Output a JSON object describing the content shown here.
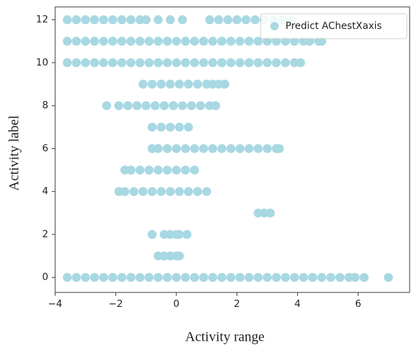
{
  "chart_data": {
    "type": "scatter",
    "xlabel": "Activity range",
    "ylabel": "Activity label",
    "xlim": [
      -4,
      7.7
    ],
    "ylim": [
      -0.7,
      12.6
    ],
    "xticks": [
      {
        "value": -4,
        "label": "−4"
      },
      {
        "value": -2,
        "label": "−2"
      },
      0,
      2,
      4,
      6
    ],
    "yticks": [
      0,
      2,
      4,
      6,
      8,
      10,
      12
    ],
    "legend": "upper right",
    "series": [
      {
        "name": "Predict AChestXaxis",
        "color": "#a8d8e2",
        "x": [
          -3.6,
          -3.3,
          -3.0,
          -2.7,
          -2.4,
          -2.1,
          -1.8,
          -1.5,
          -1.2,
          -1.0,
          -0.6,
          -0.2,
          0.2,
          1.1,
          1.4,
          1.7,
          2.0,
          2.3,
          2.6,
          2.9,
          3.2,
          3.5,
          3.8,
          -3.6,
          -3.3,
          -3.0,
          -2.7,
          -2.4,
          -2.1,
          -1.8,
          -1.5,
          -1.2,
          -0.9,
          -0.6,
          -0.3,
          0,
          0.3,
          0.6,
          0.9,
          1.2,
          1.5,
          1.8,
          2.1,
          2.4,
          2.7,
          3.0,
          3.3,
          3.6,
          3.9,
          4.2,
          4.4,
          4.7,
          4.8,
          -3.6,
          -3.3,
          -3.0,
          -2.7,
          -2.4,
          -2.1,
          -1.8,
          -1.5,
          -1.2,
          -0.9,
          -0.6,
          -0.3,
          0,
          0.3,
          0.6,
          0.9,
          1.2,
          1.5,
          1.8,
          2.1,
          2.4,
          2.7,
          3.0,
          3.3,
          3.6,
          3.9,
          4.1,
          -1.1,
          -0.8,
          -0.5,
          -0.2,
          0.1,
          0.4,
          0.7,
          1.0,
          1.2,
          1.4,
          1.6,
          -2.3,
          -1.9,
          -1.6,
          -1.3,
          -1.0,
          -0.7,
          -0.4,
          -0.1,
          0.2,
          0.5,
          0.8,
          1.1,
          1.3,
          -0.8,
          -0.5,
          -0.2,
          0.1,
          0.4,
          -0.8,
          -0.6,
          -0.3,
          0,
          0.3,
          0.6,
          0.9,
          1.2,
          1.5,
          1.8,
          2.1,
          2.4,
          2.7,
          3.0,
          3.3,
          3.4,
          -1.7,
          -1.5,
          -1.2,
          -0.9,
          -0.6,
          -0.3,
          0,
          0.3,
          0.6,
          -1.9,
          -1.7,
          -1.4,
          -1.1,
          -0.8,
          -0.5,
          -0.2,
          0.1,
          0.4,
          0.7,
          1.0,
          2.7,
          2.9,
          3.1,
          -0.8,
          -0.4,
          -0.2,
          0,
          0.1,
          0.35,
          -0.6,
          -0.4,
          -0.2,
          0,
          0.1,
          -3.6,
          -3.3,
          -3.0,
          -2.7,
          -2.4,
          -2.1,
          -1.8,
          -1.5,
          -1.2,
          -0.9,
          -0.6,
          -0.3,
          0,
          0.3,
          0.6,
          0.9,
          1.2,
          1.5,
          1.8,
          2.1,
          2.4,
          2.7,
          3.0,
          3.3,
          3.6,
          3.9,
          4.2,
          4.5,
          4.8,
          5.1,
          5.4,
          5.7,
          5.9,
          6.2,
          7.0
        ],
        "values": [
          12,
          12,
          12,
          12,
          12,
          12,
          12,
          12,
          12,
          12,
          12,
          12,
          12,
          12,
          12,
          12,
          12,
          12,
          12,
          12,
          12,
          12,
          12,
          11,
          11,
          11,
          11,
          11,
          11,
          11,
          11,
          11,
          11,
          11,
          11,
          11,
          11,
          11,
          11,
          11,
          11,
          11,
          11,
          11,
          11,
          11,
          11,
          11,
          11,
          11,
          11,
          11,
          11,
          10,
          10,
          10,
          10,
          10,
          10,
          10,
          10,
          10,
          10,
          10,
          10,
          10,
          10,
          10,
          10,
          10,
          10,
          10,
          10,
          10,
          10,
          10,
          10,
          10,
          10,
          10,
          9,
          9,
          9,
          9,
          9,
          9,
          9,
          9,
          9,
          9,
          9,
          8,
          8,
          8,
          8,
          8,
          8,
          8,
          8,
          8,
          8,
          8,
          8,
          8,
          7,
          7,
          7,
          7,
          7,
          6,
          6,
          6,
          6,
          6,
          6,
          6,
          6,
          6,
          6,
          6,
          6,
          6,
          6,
          6,
          6,
          5,
          5,
          5,
          5,
          5,
          5,
          5,
          5,
          5,
          4,
          4,
          4,
          4,
          4,
          4,
          4,
          4,
          4,
          4,
          4,
          3,
          3,
          3,
          2,
          2,
          2,
          2,
          2,
          2,
          1,
          1,
          1,
          1,
          1,
          0,
          0,
          0,
          0,
          0,
          0,
          0,
          0,
          0,
          0,
          0,
          0,
          0,
          0,
          0,
          0,
          0,
          0,
          0,
          0,
          0,
          0,
          0,
          0,
          0,
          0,
          0,
          0,
          0,
          0,
          0,
          0,
          0,
          0,
          0
        ]
      }
    ]
  }
}
